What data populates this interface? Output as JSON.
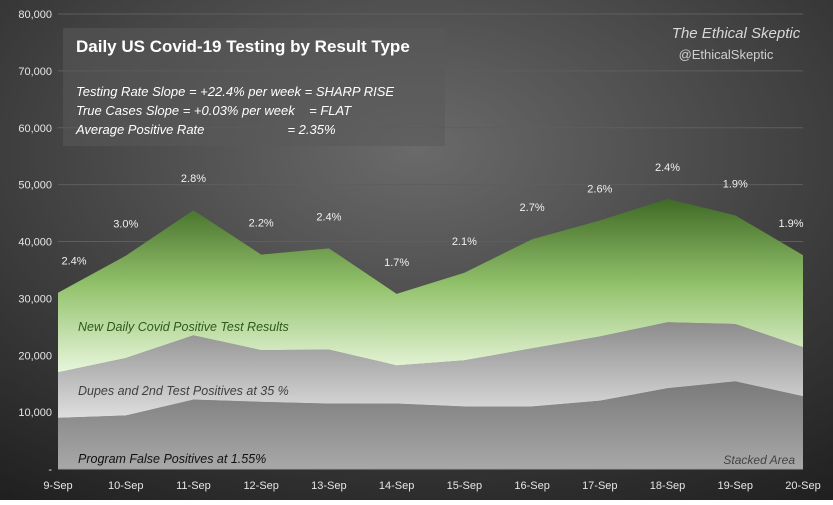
{
  "chart_data": {
    "type": "area",
    "stacked": true,
    "title": "Daily US Covid-19 Testing by Result Type",
    "categories": [
      "9-Sep",
      "10-Sep",
      "11-Sep",
      "12-Sep",
      "13-Sep",
      "14-Sep",
      "15-Sep",
      "16-Sep",
      "17-Sep",
      "18-Sep",
      "19-Sep",
      "20-Sep"
    ],
    "ylim": [
      0,
      80000
    ],
    "y_ticks": [
      "-",
      "10,000",
      "20,000",
      "30,000",
      "40,000",
      "50,000",
      "60,000",
      "70,000",
      "80,000"
    ],
    "grid": true,
    "series": [
      {
        "name": "Program False Positives at 1.55%",
        "color": "#8a8a8a",
        "values": [
          9000,
          9400,
          12200,
          11800,
          11500,
          11500,
          11000,
          11000,
          12000,
          14200,
          15400,
          12800
        ]
      },
      {
        "name": "Dupes and 2nd Test Positives at 35 %",
        "color": "#b4b4b4",
        "values": [
          8000,
          10100,
          11300,
          9100,
          9500,
          6700,
          8100,
          10200,
          11300,
          11600,
          10100,
          8600
        ]
      },
      {
        "name": "New Daily Covid Positive Test Results",
        "color": "#c8e8b0",
        "values": [
          14000,
          18000,
          22000,
          16800,
          17800,
          12600,
          15400,
          19200,
          20400,
          21700,
          19100,
          16200
        ]
      }
    ],
    "data_labels": [
      "2.4%",
      "3.0%",
      "2.8%",
      "2.2%",
      "2.4%",
      "1.7%",
      "2.1%",
      "2.7%",
      "2.6%",
      "2.4%",
      "1.9%",
      "1.9%"
    ],
    "annotations": {
      "slope_lines": [
        "Testing Rate Slope = +22.4% per week = SHARP RISE",
        "True Cases Slope = +0.03% per week    = FLAT",
        "Average Positive Rate                       = 2.35%"
      ],
      "watermark_name": "The Ethical Skeptic",
      "watermark_handle": "@EthicalSkeptic",
      "chart_kind_label": "Stacked Area"
    }
  }
}
